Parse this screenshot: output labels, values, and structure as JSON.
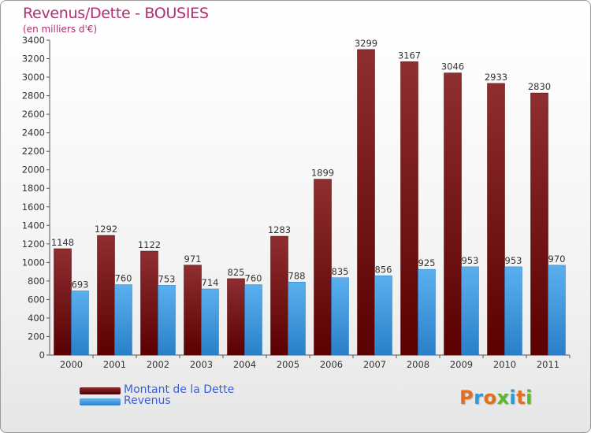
{
  "title": "Revenus/Dette - BOUSIES",
  "subtitle": "(en milliers d'€)",
  "logo": {
    "text": "Proxiti",
    "letters": [
      "P",
      "r",
      "o",
      "x",
      "i",
      "t",
      "i"
    ],
    "colors": [
      "#e07020",
      "#2a9ad8",
      "#e07020",
      "#5ab82a",
      "#2a9ad8",
      "#e07020",
      "#5ab82a"
    ]
  },
  "legend": [
    {
      "label": "Montant de la Dette",
      "color": "#7a1a1a"
    },
    {
      "label": "Revenus",
      "color": "#3a9ae0"
    }
  ],
  "chart_data": {
    "type": "bar",
    "categories": [
      "2000",
      "2001",
      "2002",
      "2003",
      "2004",
      "2005",
      "2006",
      "2007",
      "2008",
      "2009",
      "2010",
      "2011"
    ],
    "series": [
      {
        "name": "Montant de la Dette",
        "color": "#7a1a1a",
        "values": [
          1148,
          1292,
          1122,
          971,
          825,
          1283,
          1899,
          3299,
          3167,
          3046,
          2933,
          2830
        ]
      },
      {
        "name": "Revenus",
        "color": "#3a9ae0",
        "values": [
          693,
          760,
          753,
          714,
          760,
          788,
          835,
          856,
          925,
          953,
          953,
          970
        ]
      }
    ],
    "ylim": [
      0,
      3400
    ],
    "yticks": [
      0,
      200,
      400,
      600,
      800,
      1000,
      1200,
      1400,
      1600,
      1800,
      2000,
      2200,
      2400,
      2600,
      2800,
      3000,
      3200,
      3400
    ],
    "grid": false,
    "legend_position": "bottom-left",
    "data_labels": true
  }
}
